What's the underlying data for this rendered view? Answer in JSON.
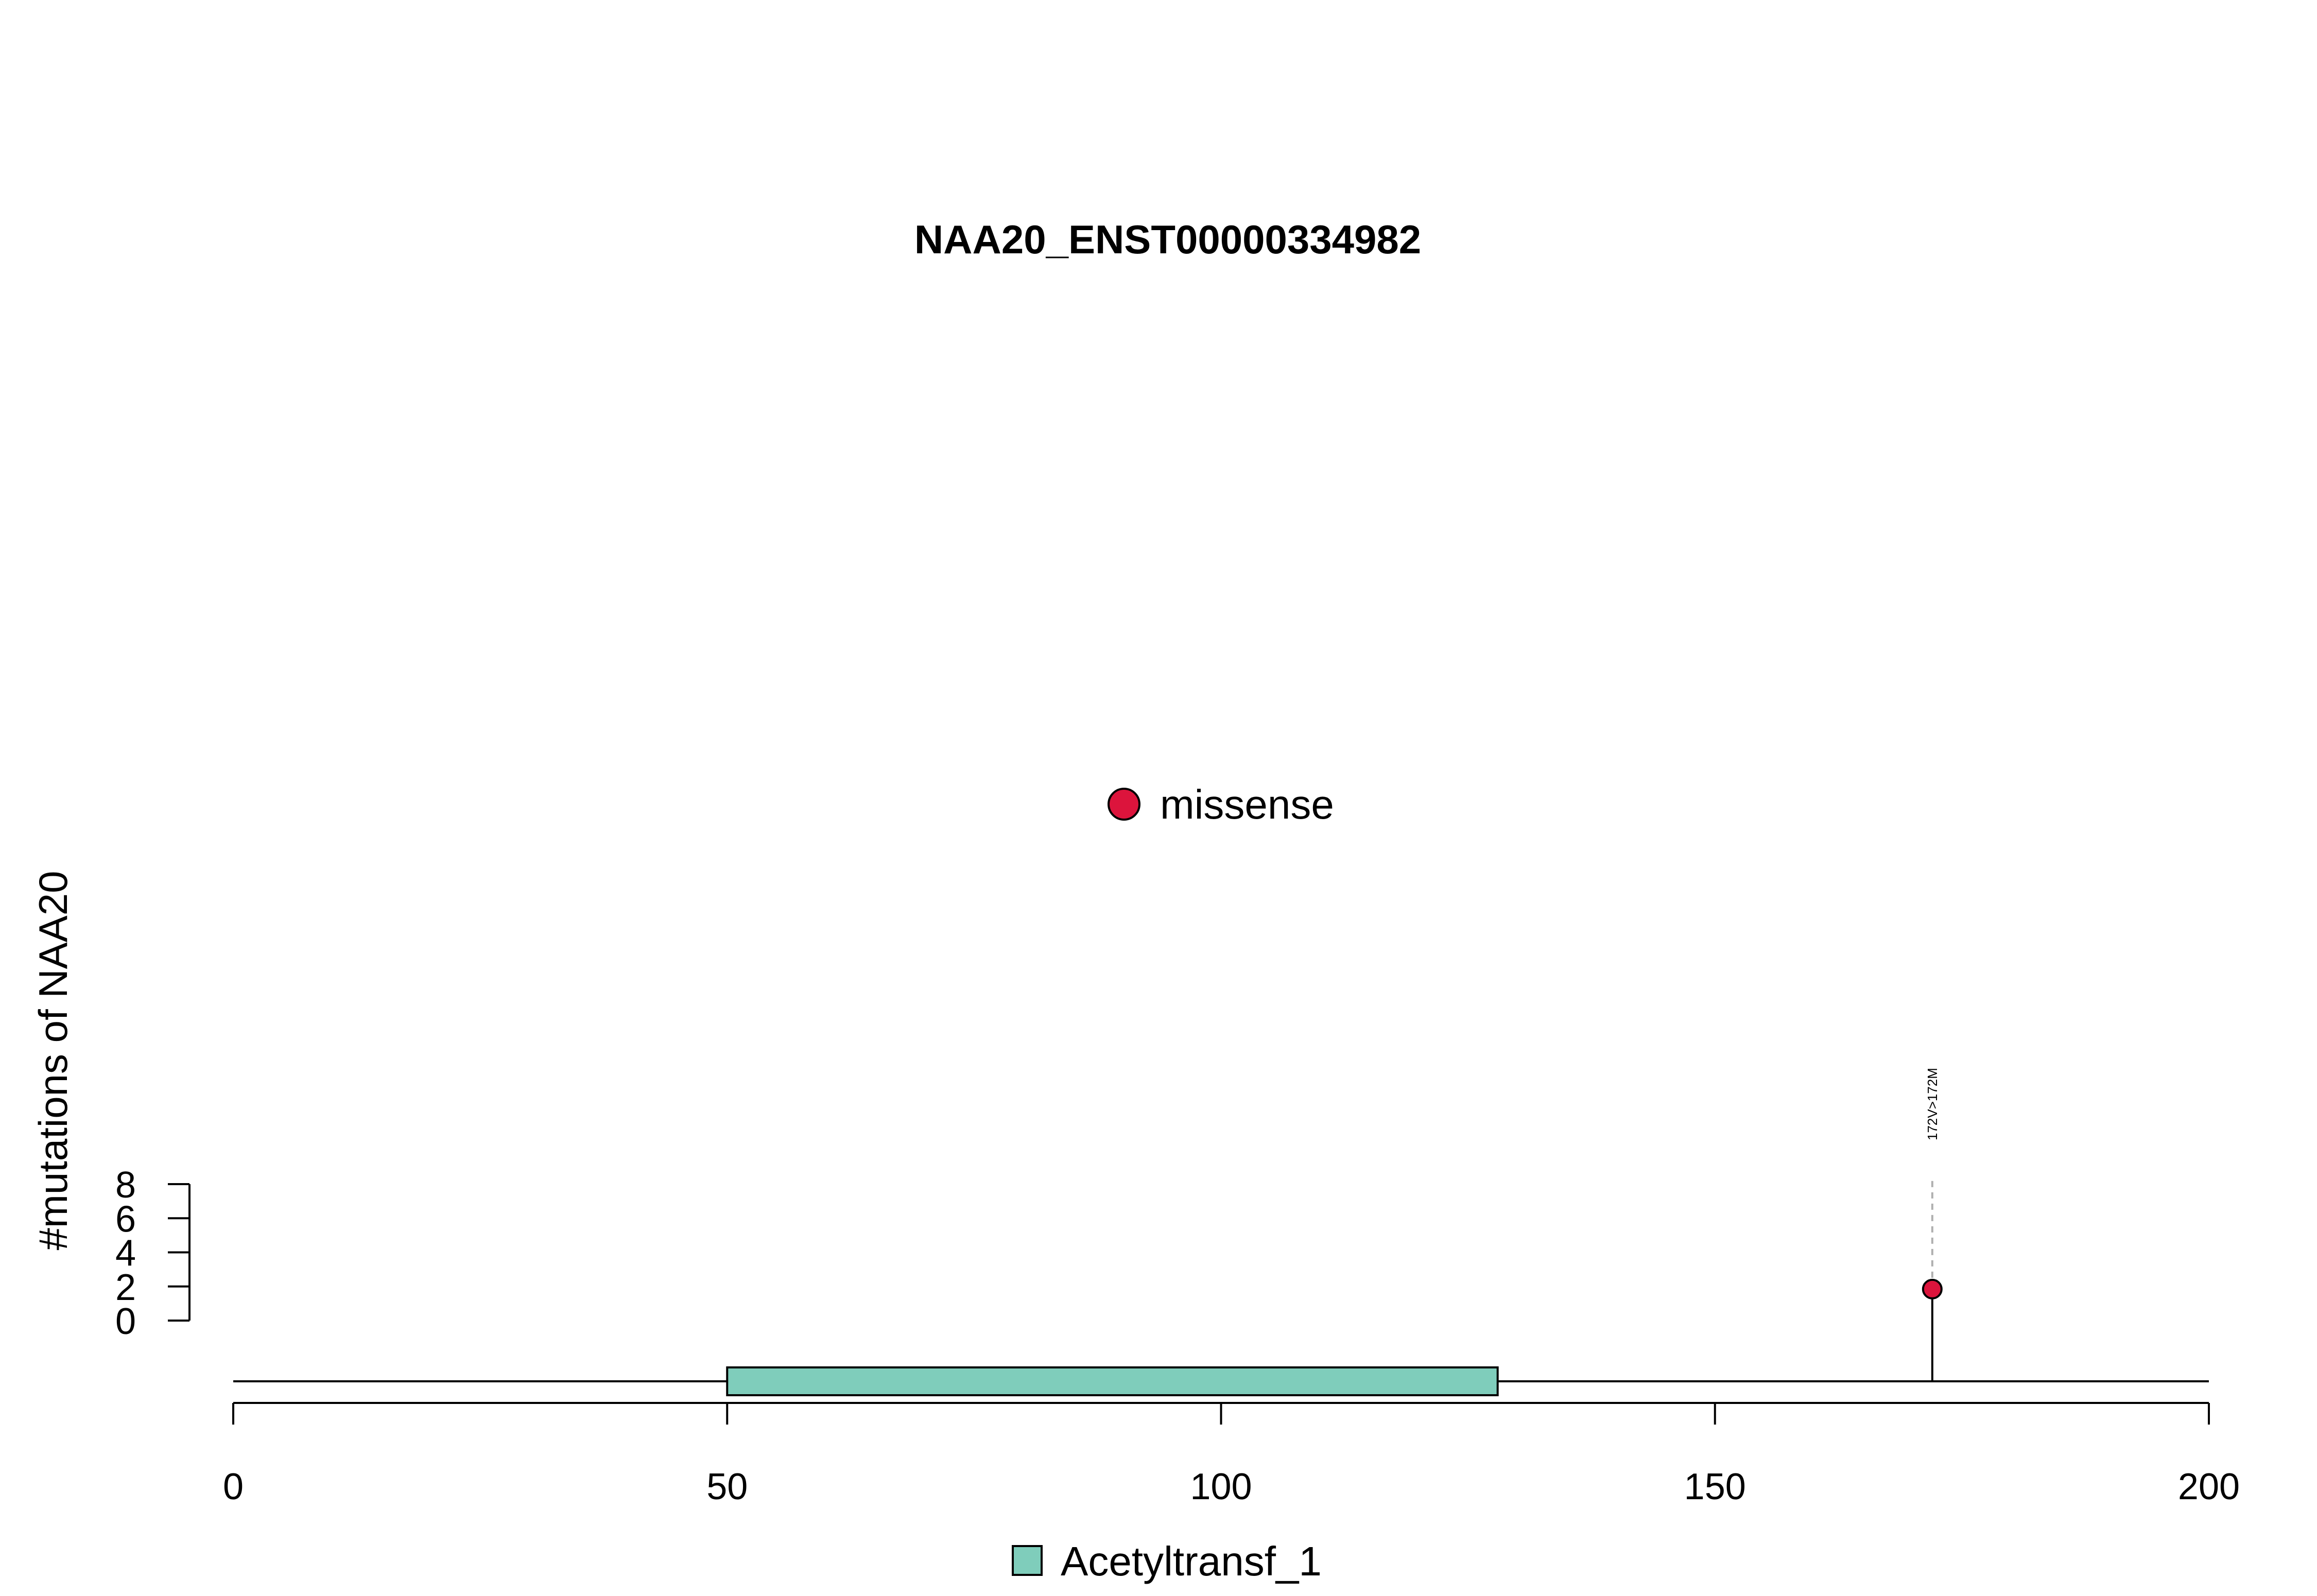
{
  "chart_data": {
    "type": "lollipop",
    "title": "NAA20_ENST00000334982",
    "ylabel": "#mutations of NAA20",
    "xlabel": "",
    "xlim": [
      0,
      200
    ],
    "x_ticks": [
      0,
      50,
      100,
      150,
      200
    ],
    "ylim": [
      0,
      8
    ],
    "y_ticks": [
      0,
      2,
      4,
      6,
      8
    ],
    "protein_length": 200,
    "domains": [
      {
        "name": "Acetyltransf_1",
        "start": 50,
        "end": 128,
        "color": "#7fcdbb"
      }
    ],
    "mutations": [
      {
        "position": 172,
        "count": 1,
        "label": "172V>172M",
        "type": "missense",
        "color": "#dc143c"
      }
    ],
    "mutation_legend": [
      {
        "type": "missense",
        "color": "#dc143c"
      }
    ],
    "domain_legend": [
      {
        "name": "Acetyltransf_1",
        "color": "#7fcdbb"
      }
    ]
  }
}
